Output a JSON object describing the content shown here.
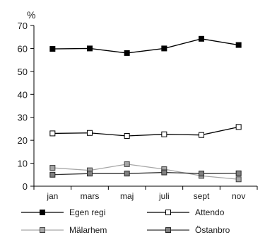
{
  "chart_data": {
    "type": "line",
    "unit_label": "%",
    "categories": [
      "jan",
      "mars",
      "maj",
      "juli",
      "sept",
      "nov"
    ],
    "ylim": [
      0,
      70
    ],
    "yticks": [
      0,
      10,
      20,
      30,
      40,
      50,
      60,
      70
    ],
    "grid": false,
    "legend_position": "bottom",
    "series": [
      {
        "name": "Egen regi",
        "values": [
          59.8,
          60.0,
          58.0,
          60.0,
          64.2,
          61.5
        ],
        "line_color": "#000000",
        "marker_fill": "#000000",
        "marker_stroke": "#000000"
      },
      {
        "name": "Attendo",
        "values": [
          23.0,
          23.2,
          21.9,
          22.6,
          22.3,
          25.8
        ],
        "line_color": "#000000",
        "marker_fill": "#ffffff",
        "marker_stroke": "#000000"
      },
      {
        "name": "Mälarhem",
        "values": [
          8.0,
          6.9,
          9.6,
          7.4,
          4.5,
          3.0
        ],
        "line_color": "#a6a6a6",
        "marker_fill": "#a6a6a6",
        "marker_stroke": "#404040"
      },
      {
        "name": "Östanbro",
        "values": [
          5.0,
          5.5,
          5.5,
          6.0,
          5.5,
          5.6
        ],
        "line_color": "#333333",
        "marker_fill": "#7f7f7f",
        "marker_stroke": "#262626"
      }
    ]
  }
}
